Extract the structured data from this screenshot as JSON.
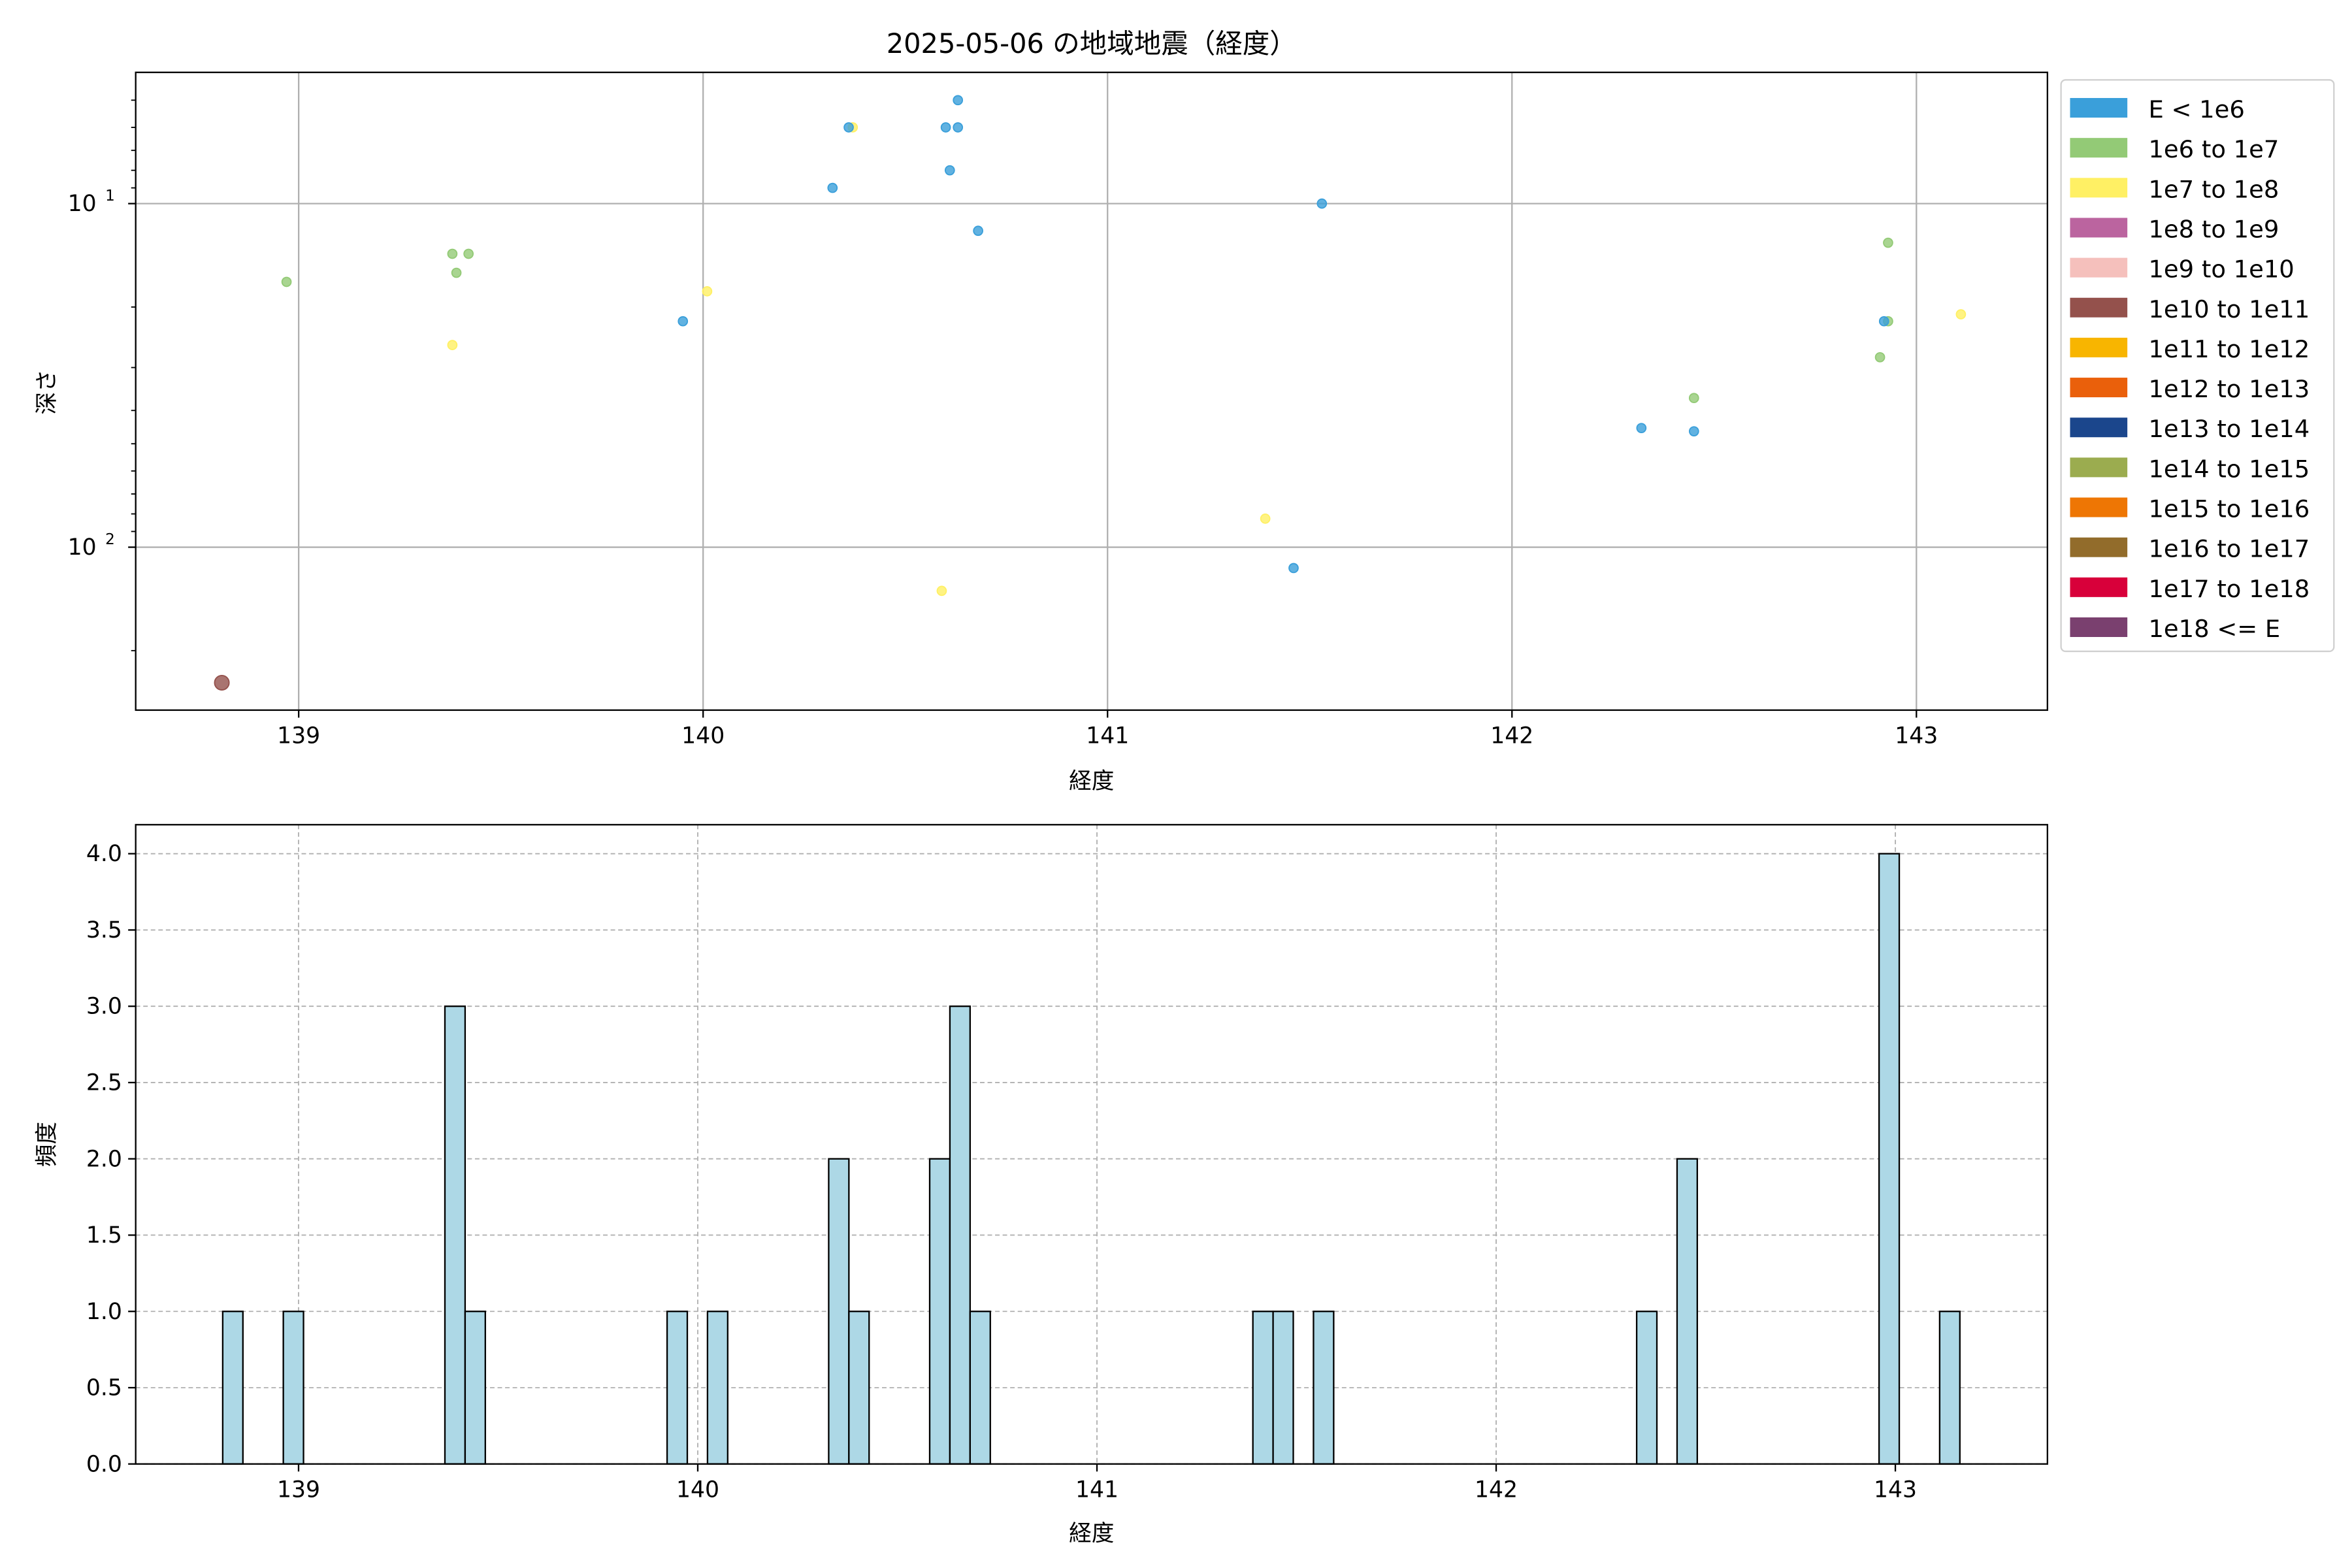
{
  "chart_data": [
    {
      "type": "scatter",
      "title": "2025-05-06 の地域地震（経度）",
      "xlabel": "経度",
      "ylabel": "深さ",
      "xlim": [
        138.597,
        143.324
      ],
      "ylim": [
        4.15,
        298
      ],
      "yscale": "log",
      "y_inverted": true,
      "grid": true,
      "xticks": [
        139,
        140,
        141,
        142,
        143
      ],
      "xtick_labels": [
        "139",
        "140",
        "141",
        "142",
        "143"
      ],
      "yticks": [
        10,
        100
      ],
      "ytick_labels": [
        {
          "base": "10",
          "exp": "1"
        },
        {
          "base": "10",
          "exp": "2"
        }
      ],
      "legend_placement": "outside-right-top",
      "legend": [
        {
          "label": "E < 1e6",
          "color": "#3a9fda"
        },
        {
          "label": "1e6 to 1e7",
          "color": "#93ca76"
        },
        {
          "label": "1e7 to 1e8",
          "color": "#fff064"
        },
        {
          "label": "1e8 to 1e9",
          "color": "#bb649f"
        },
        {
          "label": "1e9 to 1e10",
          "color": "#f5c0bc"
        },
        {
          "label": "1e10 to 1e11",
          "color": "#94514c"
        },
        {
          "label": "1e11 to 1e12",
          "color": "#f8b500"
        },
        {
          "label": "1e12 to 1e13",
          "color": "#ea600b"
        },
        {
          "label": "1e13 to 1e14",
          "color": "#1b468c"
        },
        {
          "label": "1e14 to 1e15",
          "color": "#9bac4f"
        },
        {
          "label": "1e15 to 1e16",
          "color": "#ee7604"
        },
        {
          "label": "1e16 to 1e17",
          "color": "#926c2b"
        },
        {
          "label": "1e17 to 1e18",
          "color": "#d8003a"
        },
        {
          "label": "1e18 <= E",
          "color": "#7a406f"
        }
      ],
      "points": [
        {
          "x": 138.81,
          "y": 248,
          "cls": 5
        },
        {
          "x": 138.97,
          "y": 16.9,
          "cls": 1
        },
        {
          "x": 139.38,
          "y": 14.0,
          "cls": 1
        },
        {
          "x": 139.42,
          "y": 14.0,
          "cls": 1
        },
        {
          "x": 139.39,
          "y": 15.9,
          "cls": 1
        },
        {
          "x": 139.38,
          "y": 25.8,
          "cls": 2
        },
        {
          "x": 139.95,
          "y": 22.0,
          "cls": 0
        },
        {
          "x": 140.01,
          "y": 18.0,
          "cls": 2
        },
        {
          "x": 140.32,
          "y": 9.0,
          "cls": 0
        },
        {
          "x": 140.37,
          "y": 6.0,
          "cls": 2
        },
        {
          "x": 140.36,
          "y": 6.0,
          "cls": 0
        },
        {
          "x": 140.6,
          "y": 6.0,
          "cls": 0
        },
        {
          "x": 140.63,
          "y": 6.0,
          "cls": 0
        },
        {
          "x": 140.63,
          "y": 5.0,
          "cls": 0
        },
        {
          "x": 140.61,
          "y": 8.0,
          "cls": 0
        },
        {
          "x": 140.68,
          "y": 12.0,
          "cls": 0
        },
        {
          "x": 140.59,
          "y": 134,
          "cls": 2
        },
        {
          "x": 141.39,
          "y": 82.6,
          "cls": 2
        },
        {
          "x": 141.46,
          "y": 115,
          "cls": 0
        },
        {
          "x": 141.53,
          "y": 10.0,
          "cls": 0
        },
        {
          "x": 142.32,
          "y": 45,
          "cls": 0
        },
        {
          "x": 142.45,
          "y": 36.8,
          "cls": 1
        },
        {
          "x": 142.45,
          "y": 46,
          "cls": 0
        },
        {
          "x": 142.93,
          "y": 22,
          "cls": 1
        },
        {
          "x": 142.92,
          "y": 22,
          "cls": 0
        },
        {
          "x": 142.91,
          "y": 28,
          "cls": 1
        },
        {
          "x": 142.93,
          "y": 13,
          "cls": 1
        },
        {
          "x": 143.11,
          "y": 21,
          "cls": 2
        }
      ]
    },
    {
      "type": "bar",
      "subtype": "histogram",
      "xlabel": "経度",
      "ylabel": "頻度",
      "xlim": [
        138.592,
        143.381
      ],
      "ylim": [
        0,
        4.19
      ],
      "grid": true,
      "bar_color": "#add8e6",
      "edge_color": "#000000",
      "bin_start": 138.81,
      "bin_width": 0.0506,
      "xticks": [
        139,
        140,
        141,
        142,
        143
      ],
      "xtick_labels": [
        "139",
        "140",
        "141",
        "142",
        "143"
      ],
      "yticks": [
        0,
        0.5,
        1,
        1.5,
        2,
        2.5,
        3,
        3.5,
        4
      ],
      "ytick_labels": [
        "0.0",
        "0.5",
        "1.0",
        "1.5",
        "2.0",
        "2.5",
        "3.0",
        "3.5",
        "4.0"
      ],
      "bins": [
        {
          "index": 0,
          "count": 1
        },
        {
          "index": 3,
          "count": 1
        },
        {
          "index": 11,
          "count": 3
        },
        {
          "index": 12,
          "count": 1
        },
        {
          "index": 22,
          "count": 1
        },
        {
          "index": 24,
          "count": 1
        },
        {
          "index": 30,
          "count": 2
        },
        {
          "index": 31,
          "count": 1
        },
        {
          "index": 35,
          "count": 2
        },
        {
          "index": 36,
          "count": 3
        },
        {
          "index": 37,
          "count": 1
        },
        {
          "index": 51,
          "count": 1
        },
        {
          "index": 52,
          "count": 1
        },
        {
          "index": 54,
          "count": 1
        },
        {
          "index": 70,
          "count": 1
        },
        {
          "index": 72,
          "count": 2
        },
        {
          "index": 82,
          "count": 4
        },
        {
          "index": 85,
          "count": 1
        }
      ]
    }
  ]
}
